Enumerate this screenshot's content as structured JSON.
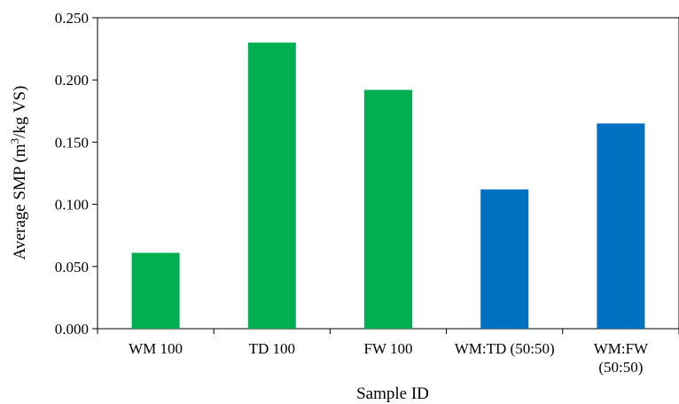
{
  "chart_data": {
    "type": "bar",
    "title": "",
    "xlabel": "Sample ID",
    "ylabel": "Average SMP (m³/kg VS)",
    "ylabel_parts": {
      "pre": "Average SMP (m",
      "sup": "3",
      "post": "/kg VS)"
    },
    "ylim": [
      0,
      0.25
    ],
    "yticks": [
      "0.000",
      "0.050",
      "0.100",
      "0.150",
      "0.200",
      "0.250"
    ],
    "categories": [
      [
        "WM 100"
      ],
      [
        "TD 100"
      ],
      [
        "FW 100"
      ],
      [
        "WM:TD (50:50)"
      ],
      [
        "WM:FW",
        "(50:50)"
      ]
    ],
    "values": [
      0.061,
      0.23,
      0.192,
      0.112,
      0.165
    ],
    "colors": [
      "#00b050",
      "#00b050",
      "#00b050",
      "#0070c0",
      "#0070c0"
    ],
    "grid": false,
    "legend": "none"
  }
}
